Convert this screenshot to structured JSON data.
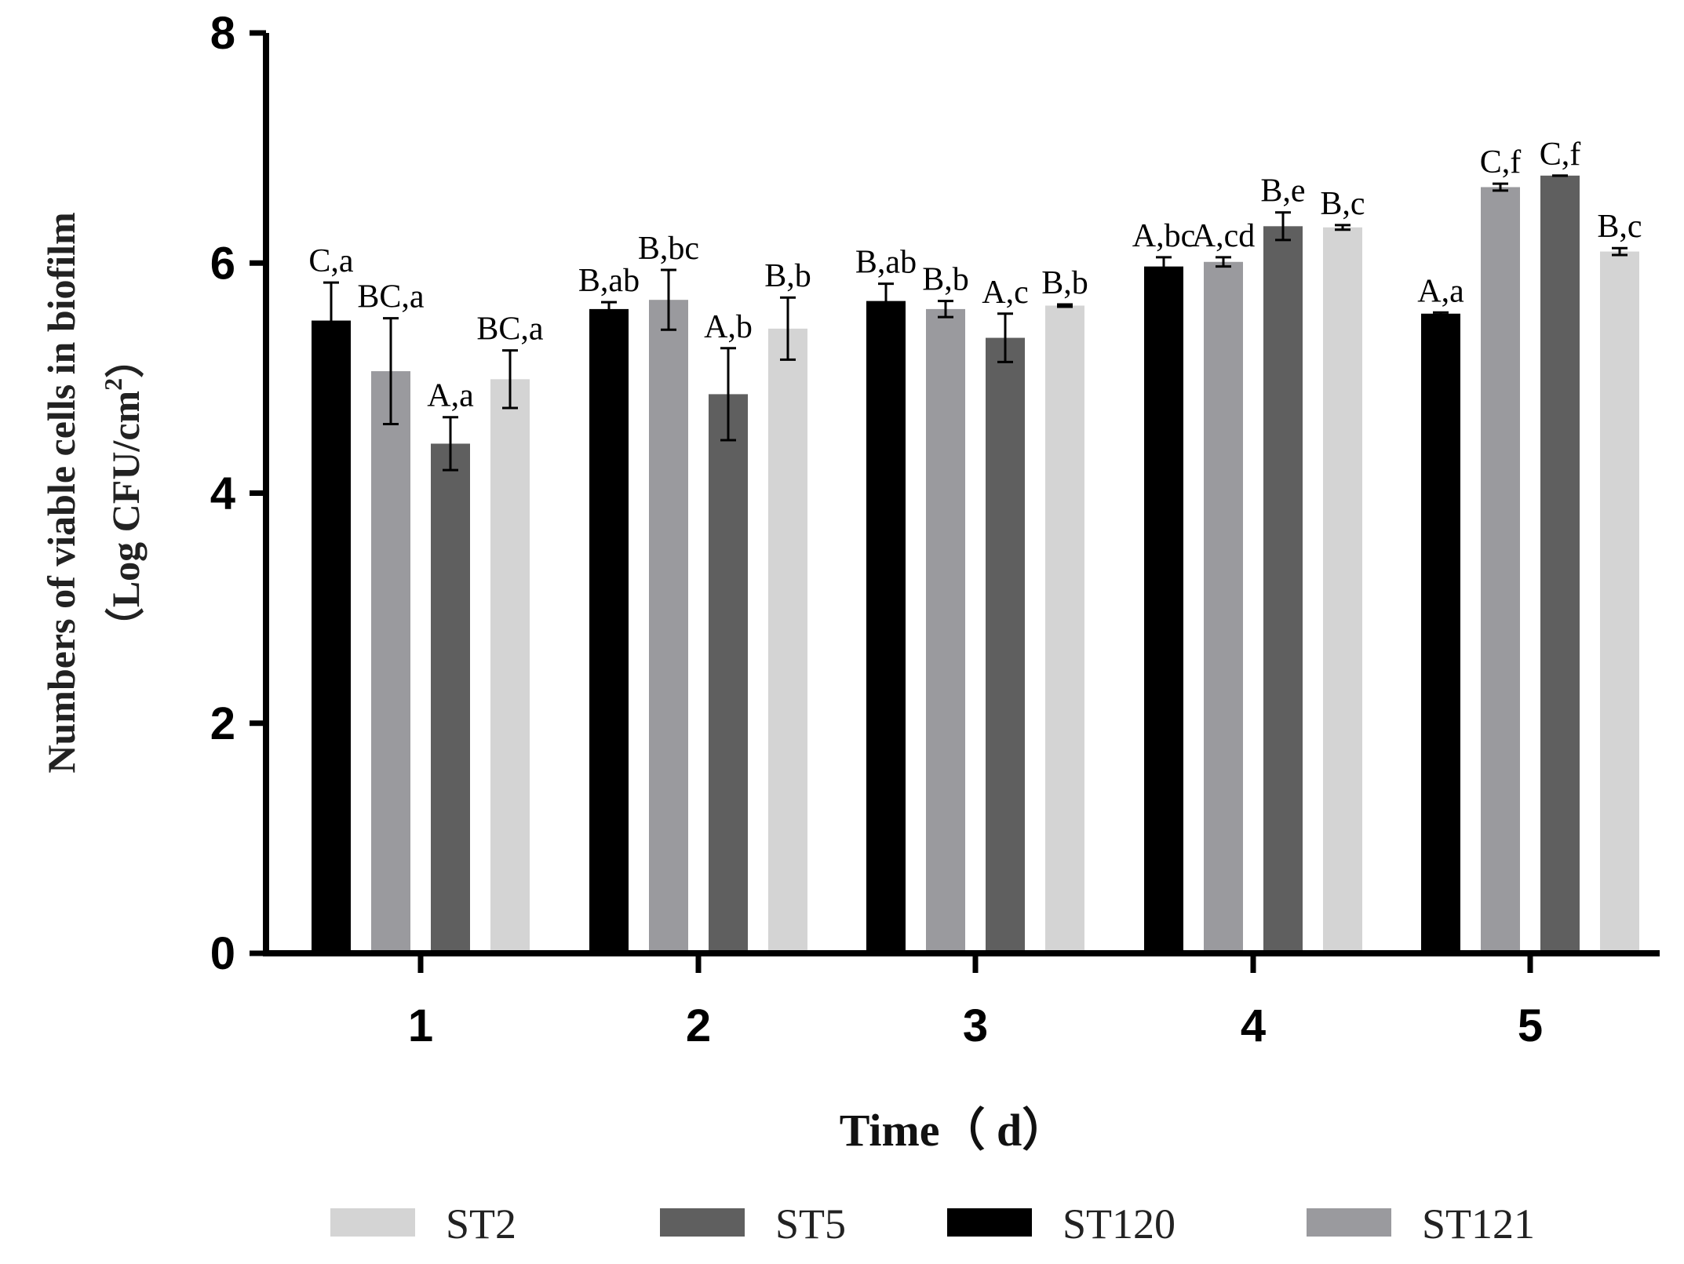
{
  "chart_data": {
    "type": "bar",
    "title": "",
    "xlabel": "Time（ d）",
    "ylabel_line1": "Numbers of viable cells in biofilm",
    "ylabel_line2": "（Log CFU/cm",
    "ylabel_sup": "2",
    "ylabel_line2_close": "）",
    "ylim": [
      0,
      8
    ],
    "yticks": [
      "0",
      "2",
      "4",
      "6",
      "8"
    ],
    "categories": [
      "1",
      "2",
      "3",
      "4",
      "5"
    ],
    "series": [
      {
        "name": "ST120",
        "color": "#000000",
        "values": [
          5.5,
          5.6,
          5.67,
          5.97,
          5.56
        ],
        "errors": [
          0.33,
          0.06,
          0.15,
          0.08,
          0.01
        ],
        "labels": [
          "C,a",
          "B,ab",
          "B,ab",
          "A,bc",
          "A,a"
        ]
      },
      {
        "name": "ST121",
        "color": "#9a9a9e",
        "values": [
          5.06,
          5.68,
          5.6,
          6.01,
          6.66
        ],
        "errors": [
          0.46,
          0.26,
          0.07,
          0.04,
          0.03
        ],
        "labels": [
          "BC,a",
          "B,bc",
          "B,b",
          "A,cd",
          "C,f"
        ]
      },
      {
        "name": "ST5",
        "color": "#5f5f5f",
        "values": [
          4.43,
          4.86,
          5.35,
          6.32,
          6.76
        ],
        "errors": [
          0.23,
          0.4,
          0.21,
          0.12,
          0.0
        ],
        "labels": [
          "A,a",
          "A,b",
          "A,c",
          "B,e",
          "C,f"
        ]
      },
      {
        "name": "ST2",
        "color": "#d4d4d4",
        "values": [
          4.99,
          5.43,
          5.63,
          6.31,
          6.1
        ],
        "errors": [
          0.25,
          0.27,
          0.01,
          0.02,
          0.03
        ],
        "labels": [
          "BC,a",
          "B,b",
          "B,b",
          "B,c",
          "B,c"
        ]
      }
    ],
    "legend": {
      "position": "bottom",
      "items": [
        {
          "name": "ST2",
          "color": "#d4d4d4"
        },
        {
          "name": "ST5",
          "color": "#5f5f5f"
        },
        {
          "name": "ST120",
          "color": "#000000"
        },
        {
          "name": "ST121",
          "color": "#9a9a9e"
        }
      ]
    }
  }
}
